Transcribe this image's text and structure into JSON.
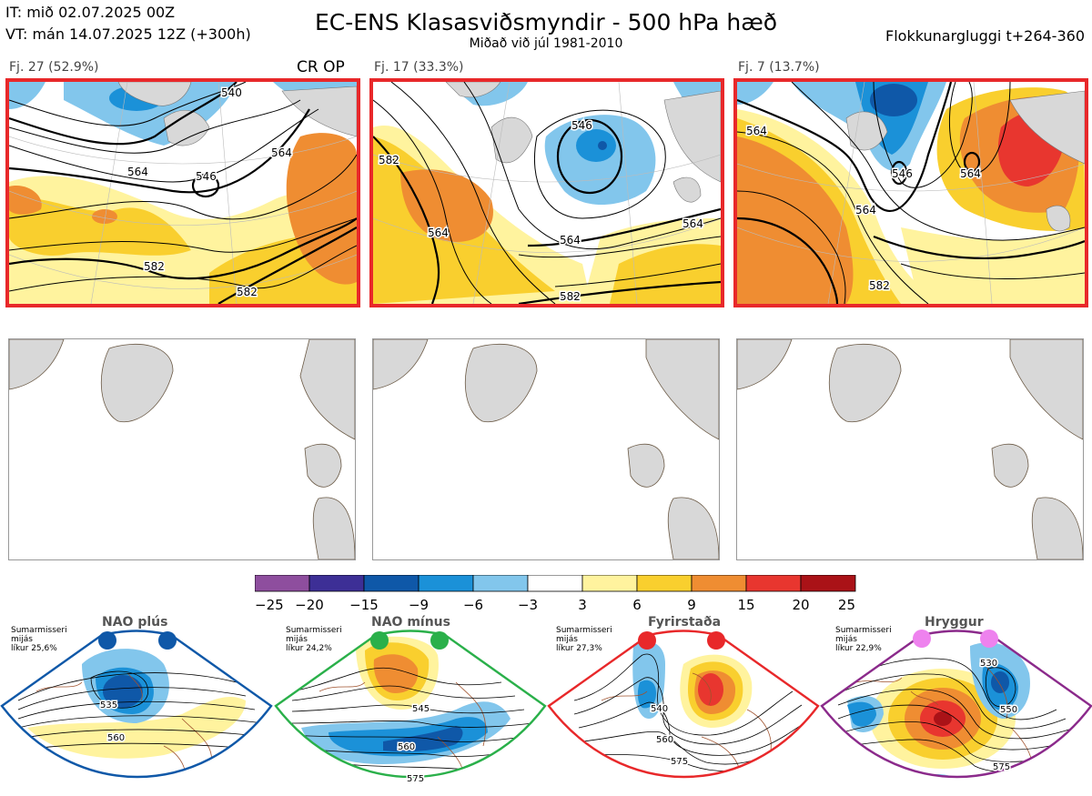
{
  "header": {
    "issue_time": "IT: mið 02.07.2025 00Z",
    "valid_time": "VT: mán 14.07.2025 12Z  (+300h)",
    "title": "EC-ENS Klasasviðsmyndir - 500 hPa hæð",
    "subtitle": "Miðað við júl 1981-2010",
    "window": "Flokkunargluggi t+264-360"
  },
  "clusters": [
    {
      "label": "Fj. 27 (52.9%)",
      "tag": "CR OP",
      "contours": [
        "564",
        "546",
        "540",
        "564",
        "582",
        "582"
      ]
    },
    {
      "label": "Fj. 17 (33.3%)",
      "tag": "",
      "contours": [
        "546",
        "564",
        "582",
        "564",
        "582",
        "564"
      ]
    },
    {
      "label": "Fj. 7 (13.7%)",
      "tag": "",
      "contours": [
        "546",
        "564",
        "582",
        "564",
        "564"
      ]
    }
  ],
  "colorbar": {
    "ticks": [
      "−25",
      "−20",
      "−15",
      "−9",
      "−6",
      "−3",
      "3",
      "6",
      "9",
      "15",
      "20",
      "25"
    ],
    "colors": [
      "#8e4e9e",
      "#3d2f96",
      "#0f58a8",
      "#1b91d8",
      "#82c6ec",
      "#ffffff",
      "#fff39e",
      "#f9cf2e",
      "#ef8d32",
      "#e8362f",
      "#aa1217"
    ]
  },
  "regimes": [
    {
      "name": "NAO plús",
      "note": [
        "Sumarmisseri",
        "mijás",
        "líkur 25,6%"
      ],
      "dot_color": "#0f58a8",
      "frame_color": "#0f58a8",
      "contours": [
        "535",
        "560"
      ]
    },
    {
      "name": "NAO mínus",
      "note": [
        "Sumarmisseri",
        "mijás",
        "líkur 24,2%"
      ],
      "dot_color": "#2ab04a",
      "frame_color": "#2ab04a",
      "contours": [
        "545",
        "560",
        "575"
      ]
    },
    {
      "name": "Fyrirstaða",
      "note": [
        "Sumarmisseri",
        "mijás",
        "líkur 27,3%"
      ],
      "dot_color": "#e8282a",
      "frame_color": "#e8282a",
      "contours": [
        "540",
        "560",
        "575"
      ]
    },
    {
      "name": "Hryggur",
      "note": [
        "Sumarmisseri",
        "mijás",
        "líkur 22,9%"
      ],
      "dot_color": "#ee82ee",
      "frame_color": "#8b2a8b",
      "contours": [
        "530",
        "550",
        "575"
      ]
    }
  ]
}
